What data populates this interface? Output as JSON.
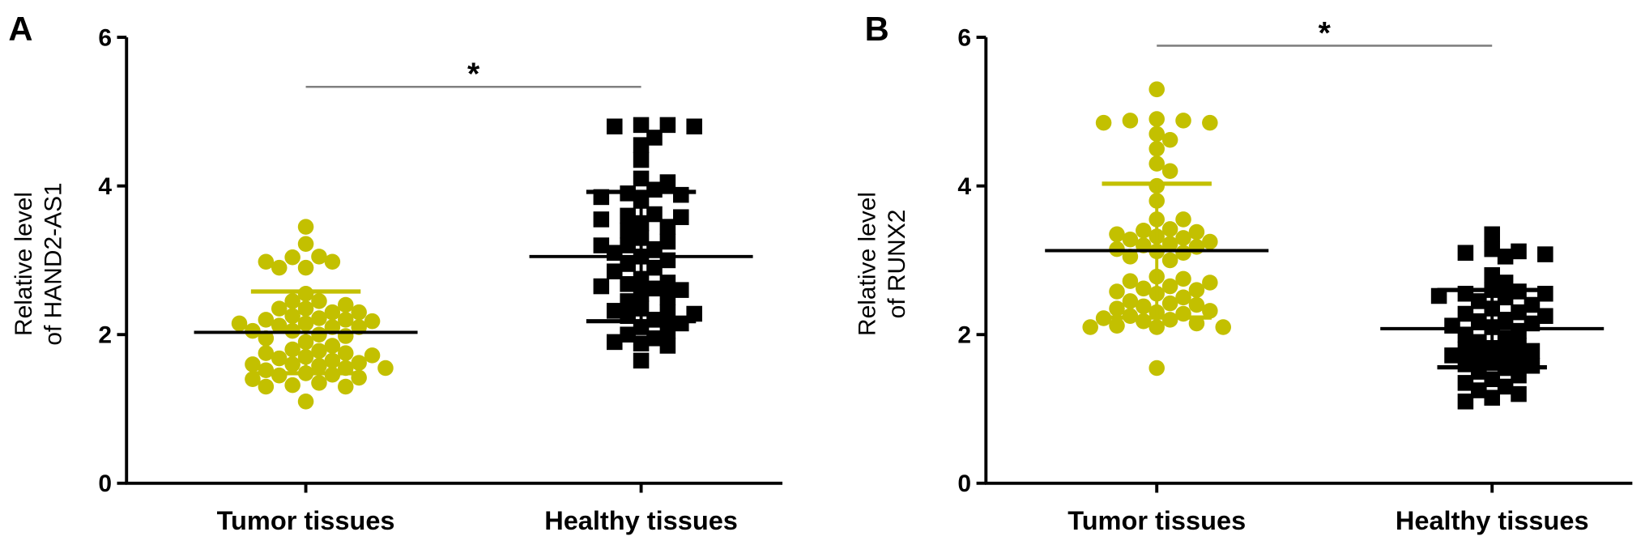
{
  "colors": {
    "tumor": "#c3c000",
    "healthy": "#000000",
    "sig_line": "#808080"
  },
  "chart_data": [
    {
      "type": "scatter",
      "panel_label": "A",
      "ylabel_line1": "Relative level",
      "ylabel_line2": "of HAND2-AS1",
      "ylim": [
        0,
        6
      ],
      "yticks": [
        "0",
        "2",
        "4",
        "6"
      ],
      "categories": [
        "Tumor tissues",
        "Healthy tissues"
      ],
      "significance": "*",
      "series": [
        {
          "name": "Tumor tissues",
          "marker": "circle",
          "mean": 2.03,
          "sd": 0.55,
          "values": [
            3.45,
            3.22,
            3.05,
            3.04,
            2.98,
            2.98,
            2.9,
            2.9,
            2.55,
            2.45,
            2.45,
            2.4,
            2.35,
            2.35,
            2.3,
            2.3,
            2.25,
            2.22,
            2.2,
            2.2,
            2.18,
            2.15,
            2.15,
            2.12,
            2.1,
            2.1,
            2.05,
            2.05,
            2.0,
            1.98,
            1.95,
            1.9,
            1.85,
            1.8,
            1.78,
            1.75,
            1.75,
            1.72,
            1.7,
            1.68,
            1.65,
            1.62,
            1.6,
            1.6,
            1.58,
            1.55,
            1.55,
            1.52,
            1.48,
            1.46,
            1.45,
            1.42,
            1.4,
            1.35,
            1.32,
            1.3,
            1.3,
            1.1
          ]
        },
        {
          "name": "Healthy tissues",
          "marker": "square",
          "mean": 3.05,
          "sd": 0.87,
          "values": [
            4.82,
            4.82,
            4.8,
            4.8,
            4.65,
            4.55,
            4.35,
            4.1,
            4.05,
            3.95,
            3.9,
            3.88,
            3.85,
            3.8,
            3.62,
            3.6,
            3.58,
            3.55,
            3.5,
            3.45,
            3.4,
            3.3,
            3.25,
            3.2,
            3.2,
            3.15,
            3.1,
            3.05,
            3.0,
            2.95,
            2.9,
            2.85,
            2.75,
            2.7,
            2.68,
            2.65,
            2.62,
            2.6,
            2.55,
            2.5,
            2.45,
            2.35,
            2.32,
            2.3,
            2.28,
            2.25,
            2.2,
            2.15,
            2.1,
            2.05,
            2.0,
            1.95,
            1.9,
            1.88,
            1.85,
            1.65
          ]
        }
      ]
    },
    {
      "type": "scatter",
      "panel_label": "B",
      "ylabel_line1": "Relative level",
      "ylabel_line2": "of RUNX2",
      "ylim": [
        0,
        6
      ],
      "yticks": [
        "0",
        "2",
        "4",
        "6"
      ],
      "categories": [
        "Tumor tissues",
        "Healthy tissues"
      ],
      "significance": "*",
      "series": [
        {
          "name": "Tumor tissues",
          "marker": "circle",
          "mean": 3.13,
          "sd": 0.9,
          "values": [
            5.3,
            4.9,
            4.88,
            4.88,
            4.85,
            4.85,
            4.7,
            4.62,
            4.5,
            4.3,
            4.2,
            4.0,
            3.8,
            3.55,
            3.55,
            3.42,
            3.4,
            3.38,
            3.35,
            3.32,
            3.3,
            3.28,
            3.25,
            3.22,
            3.2,
            3.18,
            3.15,
            3.12,
            3.1,
            3.05,
            3.0,
            2.78,
            2.75,
            2.72,
            2.7,
            2.65,
            2.62,
            2.6,
            2.58,
            2.55,
            2.5,
            2.45,
            2.42,
            2.4,
            2.38,
            2.35,
            2.32,
            2.3,
            2.28,
            2.25,
            2.22,
            2.2,
            2.18,
            2.15,
            2.12,
            2.1,
            2.1,
            2.1,
            1.55
          ]
        },
        {
          "name": "Healthy tissues",
          "marker": "square",
          "mean": 2.08,
          "sd": 0.52,
          "values": [
            3.35,
            3.15,
            3.12,
            3.1,
            3.08,
            3.05,
            2.8,
            2.7,
            2.6,
            2.58,
            2.55,
            2.55,
            2.52,
            2.5,
            2.45,
            2.4,
            2.35,
            2.3,
            2.28,
            2.25,
            2.2,
            2.18,
            2.15,
            2.12,
            2.1,
            2.05,
            2.0,
            1.95,
            1.9,
            1.85,
            1.82,
            1.8,
            1.78,
            1.75,
            1.72,
            1.7,
            1.65,
            1.62,
            1.6,
            1.58,
            1.55,
            1.5,
            1.45,
            1.4,
            1.35,
            1.3,
            1.25,
            1.2,
            1.15,
            1.1
          ]
        }
      ]
    }
  ]
}
